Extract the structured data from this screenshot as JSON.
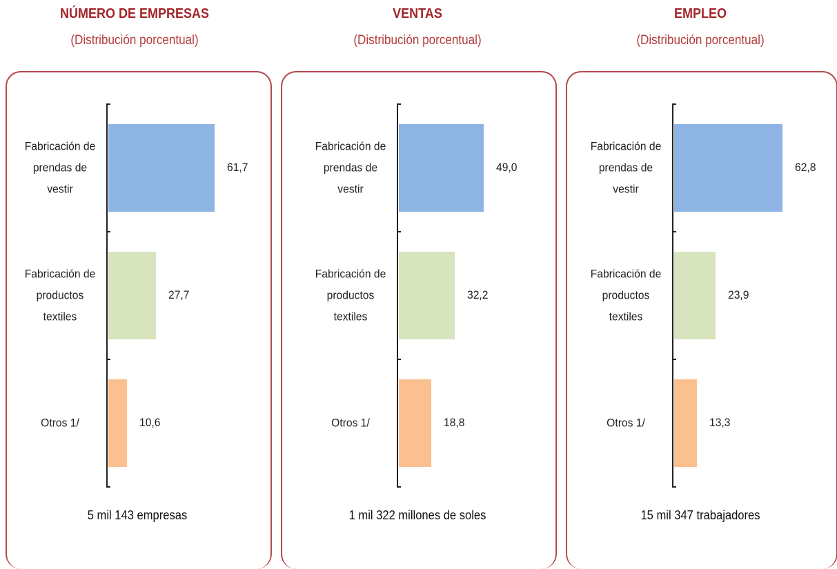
{
  "chart_data": [
    {
      "type": "bar",
      "title": "NÚMERO DE EMPRESAS",
      "subtitle": "(Distribución porcentual)",
      "categories": [
        "Fabricación de prendas de vestir",
        "Fabricación de productos textiles",
        "Otros 1/"
      ],
      "values": [
        61.7,
        27.7,
        10.6
      ],
      "value_labels": [
        "61,7",
        "27,7",
        "10,6"
      ],
      "colors": [
        "#8eb4e3",
        "#d7e4bd",
        "#fac090"
      ],
      "footer": "5 mil 143 empresas"
    },
    {
      "type": "bar",
      "title": "VENTAS",
      "subtitle": "(Distribución porcentual)",
      "categories": [
        "Fabricación de prendas de vestir",
        "Fabricación de productos textiles",
        "Otros 1/"
      ],
      "values": [
        49.0,
        32.2,
        18.8
      ],
      "value_labels": [
        "49,0",
        "32,2",
        "18,8"
      ],
      "colors": [
        "#8eb4e3",
        "#d7e4bd",
        "#fac090"
      ],
      "footer": "1 mil 322 millones de soles"
    },
    {
      "type": "bar",
      "title": "EMPLEO",
      "subtitle": "(Distribución porcentual)",
      "categories": [
        "Fabricación de prendas de vestir",
        "Fabricación de productos textiles",
        "Otros 1/"
      ],
      "values": [
        62.8,
        23.9,
        13.3
      ],
      "value_labels": [
        "62,8",
        "23,9",
        "13,3"
      ],
      "colors": [
        "#8eb4e3",
        "#d7e4bd",
        "#fac090"
      ],
      "footer": "15 mil 347 trabajadores"
    }
  ]
}
